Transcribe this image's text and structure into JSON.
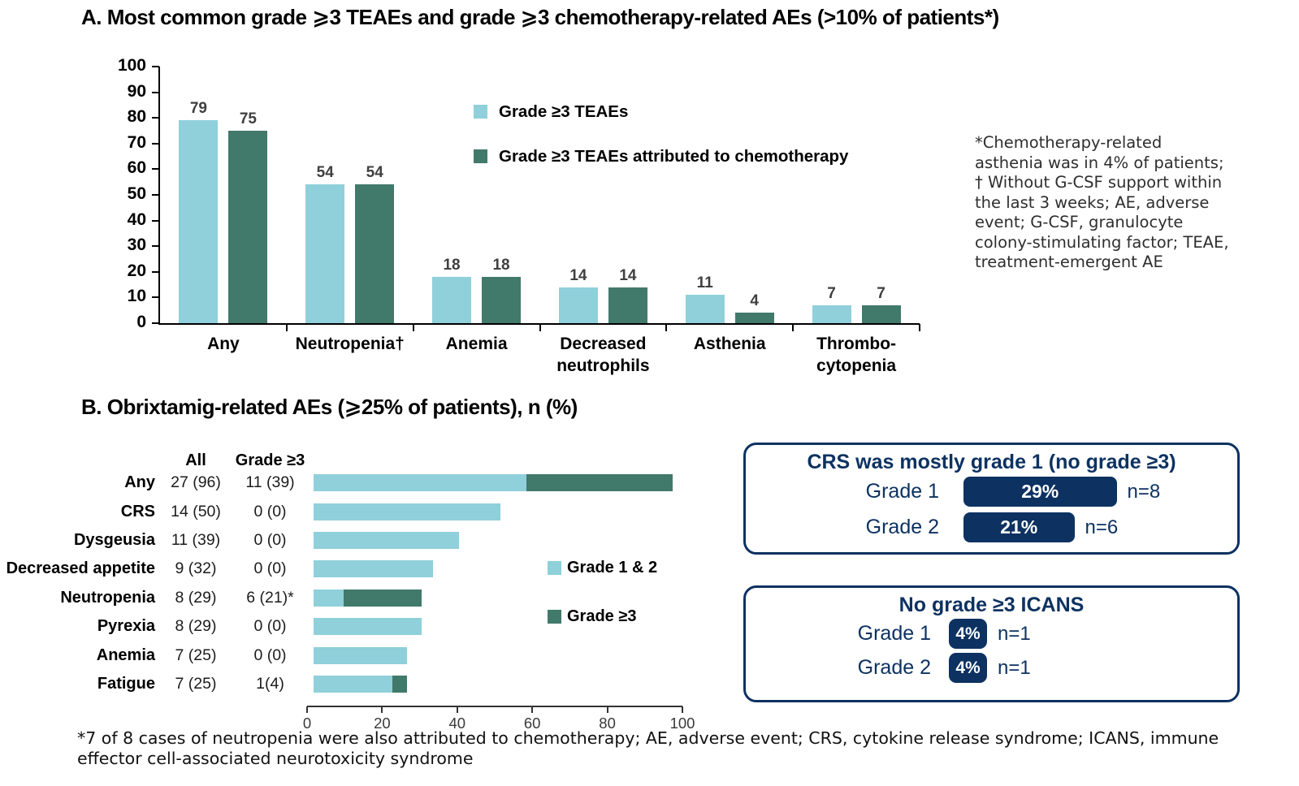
{
  "colors": {
    "grade12_light_teal": "#8fd0da",
    "grade3_dark_teal": "#41796b",
    "navy": "#0d3261"
  },
  "panel_a": {
    "title": "A. Most common grade ⩾3 TEAEs and grade ⩾3 chemotherapy-related AEs (>10% of patients*)",
    "footnote": "*Chemotherapy-related asthenia was in 4% of patients;  † Without G-CSF support within the last 3 weeks; AE, adverse event; G-CSF, granulocyte colony-stimulating factor; TEAE, treatment-emergent AE"
  },
  "panel_b": {
    "title": "B. Obrixtamig-related AEs (⩾25% of patients), n (%)"
  },
  "chart_data": [
    {
      "type": "bar",
      "title": "A. Most common grade ⩾3 TEAEs and grade ⩾3 chemotherapy-related AEs (>10% of patients*)",
      "categories": [
        "Any",
        "Neutropenia†",
        "Anemia",
        "Decreased\nneutrophils",
        "Asthenia",
        "Thrombo-\ncytopenia"
      ],
      "series": [
        {
          "name": "Grade ≥3 TEAEs",
          "color": "#8fd0da",
          "values": [
            79,
            54,
            18,
            14,
            11,
            7
          ]
        },
        {
          "name": "Grade ≥3 TEAEs attributed to chemotherapy",
          "color": "#41796b",
          "values": [
            75,
            54,
            18,
            14,
            4,
            7
          ]
        }
      ],
      "xlabel": "",
      "ylabel": "",
      "ylim": [
        0,
        100
      ],
      "ytick_step": 10,
      "grid": false,
      "legend_position": "inside-top-right"
    },
    {
      "type": "bar-horizontal-stacked",
      "title": "B. Obrixtamig-related AEs (⩾25% of patients), n (%)",
      "column_headers": [
        "All",
        "Grade ≥3"
      ],
      "legend": [
        "Grade 1 & 2",
        "Grade ≥3"
      ],
      "xlim": [
        0,
        100
      ],
      "xticks": [
        0,
        20,
        40,
        60,
        80,
        100
      ],
      "rows": [
        {
          "label": "Any",
          "all": "27 (96)",
          "grade3": "11 (39)",
          "grade12_len": 57,
          "grade3_len": 39
        },
        {
          "label": "CRS",
          "all": "14 (50)",
          "grade3": "0 (0)",
          "grade12_len": 50,
          "grade3_len": 0
        },
        {
          "label": "Dysgeusia",
          "all": "11 (39)",
          "grade3": "0 (0)",
          "grade12_len": 39,
          "grade3_len": 0
        },
        {
          "label": "Decreased appetite",
          "all": "9 (32)",
          "grade3": "0 (0)",
          "grade12_len": 32,
          "grade3_len": 0
        },
        {
          "label": "Neutropenia",
          "all": "8 (29)",
          "grade3": "6 (21)*",
          "grade12_len": 8,
          "grade3_len": 21
        },
        {
          "label": "Pyrexia",
          "all": "8 (29)",
          "grade3": "0 (0)",
          "grade12_len": 29,
          "grade3_len": 0
        },
        {
          "label": "Anemia",
          "all": "7 (25)",
          "grade3": "0 (0)",
          "grade12_len": 25,
          "grade3_len": 0
        },
        {
          "label": "Fatigue",
          "all": "7 (25)",
          "grade3": "1(4)",
          "grade12_len": 21,
          "grade3_len": 4
        }
      ]
    }
  ],
  "crs_box": {
    "title": "CRS was mostly grade 1 (no grade ≥3)",
    "rows": [
      {
        "label": "Grade 1",
        "pct": "29%",
        "pct_value": 29,
        "n": "n=8"
      },
      {
        "label": "Grade 2",
        "pct": "21%",
        "pct_value": 21,
        "n": "n=6"
      }
    ]
  },
  "icans_box": {
    "title": "No grade ≥3 ICANS",
    "rows": [
      {
        "label": "Grade 1",
        "pct": "4%",
        "pct_value": 4,
        "n": "n=1"
      },
      {
        "label": "Grade 2",
        "pct": "4%",
        "pct_value": 4,
        "n": "n=1"
      }
    ]
  },
  "footer": "*7 of 8 cases of neutropenia were also attributed to chemotherapy; AE, adverse event; CRS, cytokine release syndrome; ICANS, immune effector cell-associated neurotoxicity syndrome"
}
